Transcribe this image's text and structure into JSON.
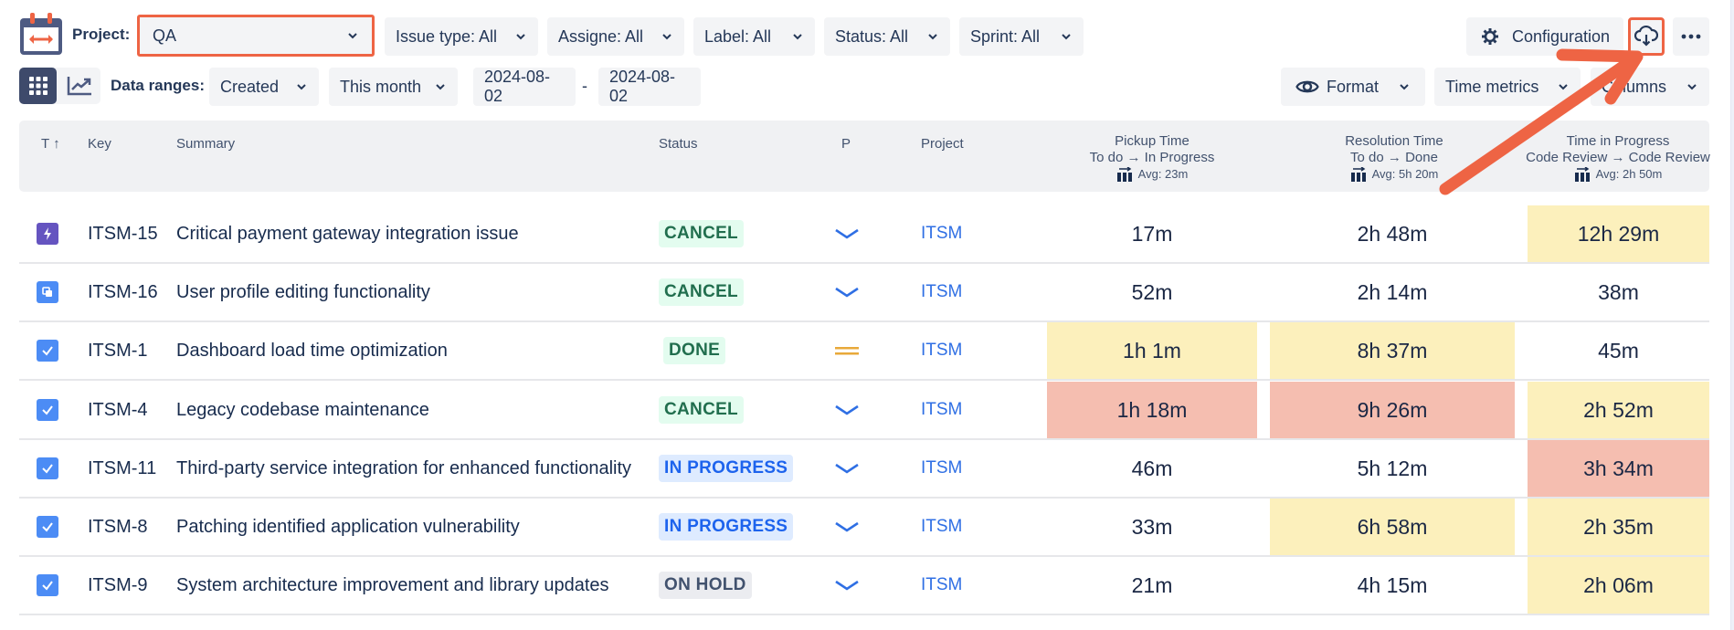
{
  "toolbar": {
    "project_label": "Project:",
    "project_value": "QA",
    "filters": [
      {
        "label": "Issue type: All"
      },
      {
        "label": "Assigne: All"
      },
      {
        "label": "Label: All"
      },
      {
        "label": "Status: All"
      },
      {
        "label": "Sprint: All"
      }
    ],
    "configuration_label": "Configuration",
    "download_icon": "cloud-download-icon",
    "more_icon": "more-horizontal-icon"
  },
  "subtoolbar": {
    "view_grid_icon": "grid-icon",
    "view_chart_icon": "trend-chart-icon",
    "data_ranges_label": "Data ranges:",
    "date_field": "Created",
    "period": "This month",
    "date_from": "2024-08-02",
    "date_separator": "-",
    "date_to": "2024-08-02",
    "format_label": "Format",
    "time_metrics_label": "Time metrics",
    "columns_label": "Columns"
  },
  "table": {
    "headers": {
      "type": "T",
      "type_sort": "↑",
      "key": "Key",
      "summary": "Summary",
      "status": "Status",
      "priority": "P",
      "project": "Project"
    },
    "metrics": [
      {
        "title": "Pickup Time",
        "transition": "To do → In Progress",
        "avg": "Avg: 23m"
      },
      {
        "title": "Resolution Time",
        "transition": "To do → Done",
        "avg": "Avg: 5h 20m"
      },
      {
        "title": "Time in Progress",
        "transition": "Code Review → Code Review",
        "avg": "Avg: 2h 50m"
      }
    ],
    "rows": [
      {
        "type": "epic",
        "key": "ITSM-15",
        "summary": "Critical payment gateway integration issue",
        "status": "CANCEL",
        "priority": "low",
        "project": "ITSM",
        "pickup": "17m",
        "resolution": "2h 48m",
        "tip": "12h 29m",
        "pickup_hl": "none",
        "resolution_hl": "none",
        "tip_hl": "yellow"
      },
      {
        "type": "subtask",
        "key": "ITSM-16",
        "summary": "User profile editing functionality",
        "status": "CANCEL",
        "priority": "low",
        "project": "ITSM",
        "pickup": "52m",
        "resolution": "2h 14m",
        "tip": "38m",
        "pickup_hl": "none",
        "resolution_hl": "none",
        "tip_hl": "none"
      },
      {
        "type": "task",
        "key": "ITSM-1",
        "summary": "Dashboard load time optimization",
        "status": "DONE",
        "priority": "medium",
        "project": "ITSM",
        "pickup": "1h 1m",
        "resolution": "8h 37m",
        "tip": "45m",
        "pickup_hl": "yellow",
        "resolution_hl": "yellow",
        "tip_hl": "none"
      },
      {
        "type": "task",
        "key": "ITSM-4",
        "summary": "Legacy codebase maintenance",
        "status": "CANCEL",
        "priority": "low",
        "project": "ITSM",
        "pickup": "1h 18m",
        "resolution": "9h 26m",
        "tip": "2h 52m",
        "pickup_hl": "red",
        "resolution_hl": "red",
        "tip_hl": "yellow"
      },
      {
        "type": "task",
        "key": "ITSM-11",
        "summary": "Third-party service integration for enhanced functionality",
        "status": "IN PROGRESS",
        "priority": "low",
        "project": "ITSM",
        "pickup": "46m",
        "resolution": "5h 12m",
        "tip": "3h 34m",
        "pickup_hl": "none",
        "resolution_hl": "none",
        "tip_hl": "red"
      },
      {
        "type": "task",
        "key": "ITSM-8",
        "summary": "Patching identified application vulnerability",
        "status": "IN PROGRESS",
        "priority": "low",
        "project": "ITSM",
        "pickup": "33m",
        "resolution": "6h 58m",
        "tip": "2h 35m",
        "pickup_hl": "none",
        "resolution_hl": "yellow",
        "tip_hl": "yellow"
      },
      {
        "type": "task",
        "key": "ITSM-9",
        "summary": "System architecture improvement and library updates",
        "status": "ON HOLD",
        "priority": "low",
        "project": "ITSM",
        "pickup": "21m",
        "resolution": "4h 15m",
        "tip": "2h 06m",
        "pickup_hl": "none",
        "resolution_hl": "none",
        "tip_hl": "yellow"
      }
    ]
  },
  "colors": {
    "accent_annotation": "#ee6444",
    "highlight_yellow": "#fcf0bc",
    "highlight_red": "#f5beb0",
    "status_done_bg": "#e3fcef",
    "status_done_fg": "#216e4e",
    "status_progress_bg": "#deebff",
    "status_progress_fg": "#1d63ed",
    "status_hold_bg": "#ebecf0",
    "status_hold_fg": "#42526e",
    "link_blue": "#2f6fe4",
    "priority_low": "#2f6fe4",
    "priority_medium": "#e8a93a"
  }
}
